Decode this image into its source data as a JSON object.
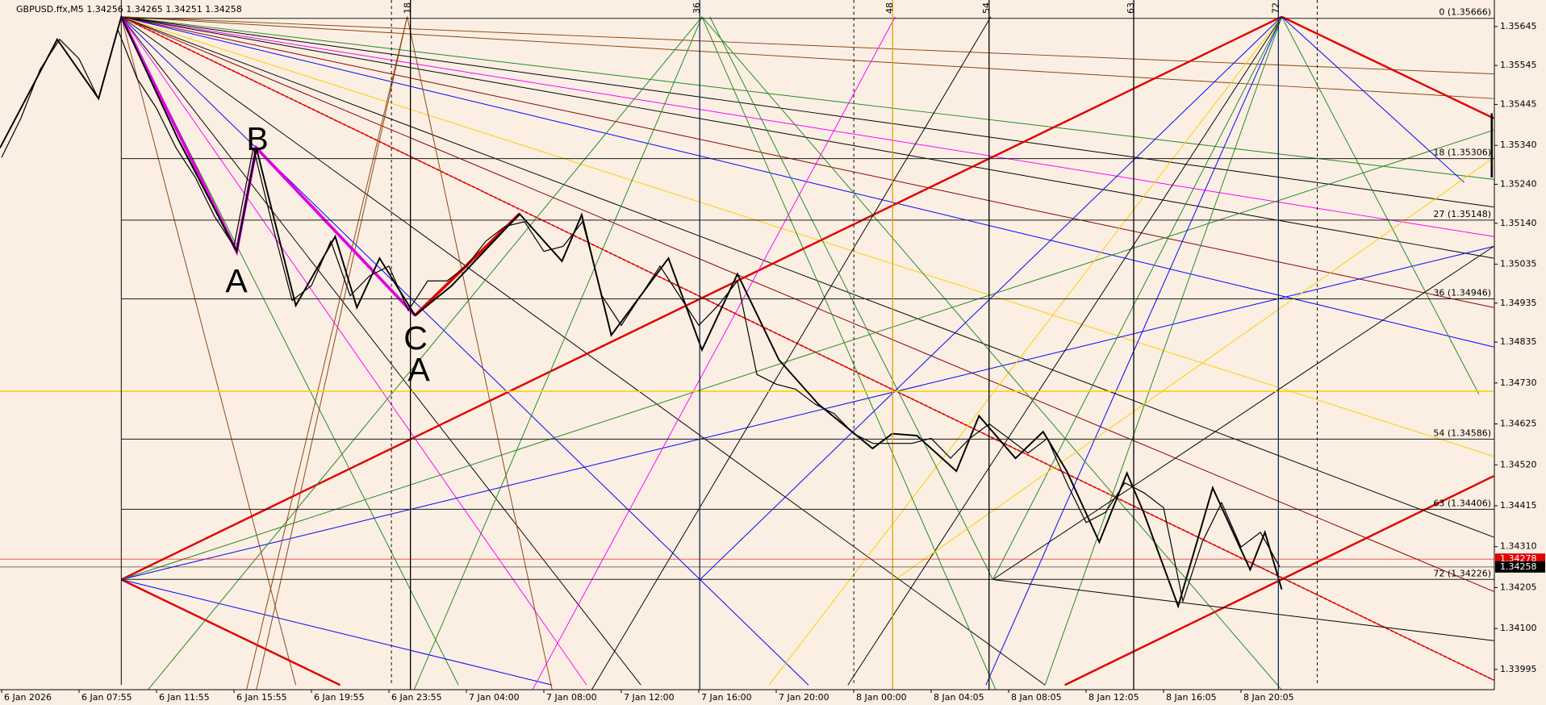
{
  "chart_data": {
    "type": "line",
    "header": "GBPUSD.ffx,M5  1.34256 1.34265 1.34251 1.34258",
    "categories": [
      "6 Jan 2026",
      null,
      null,
      null,
      "6 Jan 07:55",
      null,
      null,
      null,
      "6 Jan 11:55",
      null,
      null,
      null,
      "6 Jan 15:55",
      null,
      null,
      null,
      "6 Jan 19:55",
      null,
      null,
      null,
      "6 Jan 23:55",
      null,
      null,
      null,
      "7 Jan 04:00",
      null,
      null,
      null,
      "7 Jan 08:00",
      null,
      null,
      null,
      "7 Jan 12:00",
      null,
      null,
      null,
      "7 Jan 16:00",
      null,
      null,
      null,
      "7 Jan 20:00",
      null,
      null,
      null,
      "8 Jan 00:00",
      null,
      null,
      null,
      "8 Jan 04:05",
      null,
      null,
      null,
      "8 Jan 08:05",
      null,
      null,
      null,
      "8 Jan 12:05",
      null,
      null,
      null,
      "8 Jan 16:05",
      null,
      null,
      null,
      "8 Jan 20:05",
      null,
      null,
      null,
      null,
      null,
      null,
      null,
      null,
      null,
      null,
      null,
      null,
      null
    ],
    "series": [
      {
        "name": "GBPUSD.ffx",
        "color": "#000000",
        "values": [
          1.35309,
          1.3541,
          1.35536,
          1.35612,
          1.35562,
          1.3546,
          1.35637,
          1.35511,
          1.35435,
          1.35334,
          1.35258,
          1.35157,
          1.35081,
          1.35334,
          1.35132,
          1.34942,
          1.3498,
          1.35094,
          1.34954,
          1.35005,
          1.3503,
          1.34916,
          1.34992,
          1.34992,
          1.3503,
          1.35094,
          1.35132,
          1.35144,
          1.35068,
          1.35081,
          1.35144,
          1.34954,
          1.34878,
          1.34954,
          1.3503,
          1.34954,
          1.34878,
          1.34929,
          1.34992,
          1.34752,
          1.34727,
          1.34714,
          1.34676,
          1.34651,
          1.346,
          1.34575,
          1.34575,
          1.34575,
          1.34588,
          1.34537,
          1.34588,
          1.34625,
          1.34588,
          1.3455,
          1.34588,
          1.34474,
          1.34372,
          1.34398,
          1.34474,
          1.34448,
          1.3441,
          1.3417,
          1.34322,
          1.34423,
          1.34309,
          1.34347,
          1.34258,
          null,
          null,
          null,
          null,
          null,
          null,
          null,
          null,
          null,
          null,
          null
        ]
      }
    ],
    "ylim": [
      1.33943,
      1.35713
    ],
    "yticks": [
      1.35645,
      1.35545,
      1.35445,
      {
        "value": 1.3534,
        "label": "1.35340"
      },
      {
        "value": 1.3524,
        "label": "1.35240"
      },
      {
        "value": 1.3514,
        "label": "1.35140"
      },
      1.35035,
      1.34935,
      1.34835,
      {
        "value": 1.3473,
        "label": "1.34730"
      },
      1.34625,
      {
        "value": 1.3452,
        "label": "1.34520"
      },
      1.34415,
      {
        "value": 1.3431,
        "label": "1.34310"
      },
      1.34205,
      {
        "value": 1.341,
        "label": "1.34100"
      },
      1.33995
    ],
    "levels": [
      {
        "value": 1.35666,
        "label": "0 (1.35666)"
      },
      {
        "value": 1.35306,
        "label": "18 (1.35306)"
      },
      {
        "value": 1.35148,
        "label": "27 (1.35148)"
      },
      {
        "value": 1.34946,
        "label": "36 (1.34946)"
      },
      {
        "value": 1.34586,
        "label": "54 (1.34586)"
      },
      {
        "value": 1.34406,
        "label": "63 (1.34406)"
      },
      {
        "value": 1.34226,
        "label": "72 (1.34226)"
      }
    ],
    "time_counts": [
      18,
      36,
      48,
      54,
      63,
      72
    ],
    "price_tags": [
      1.34278,
      1.34258
    ],
    "price_tag_colors": [
      "#e00000",
      "#000000"
    ],
    "annotations": [
      "A",
      "B",
      "C",
      "A"
    ]
  }
}
